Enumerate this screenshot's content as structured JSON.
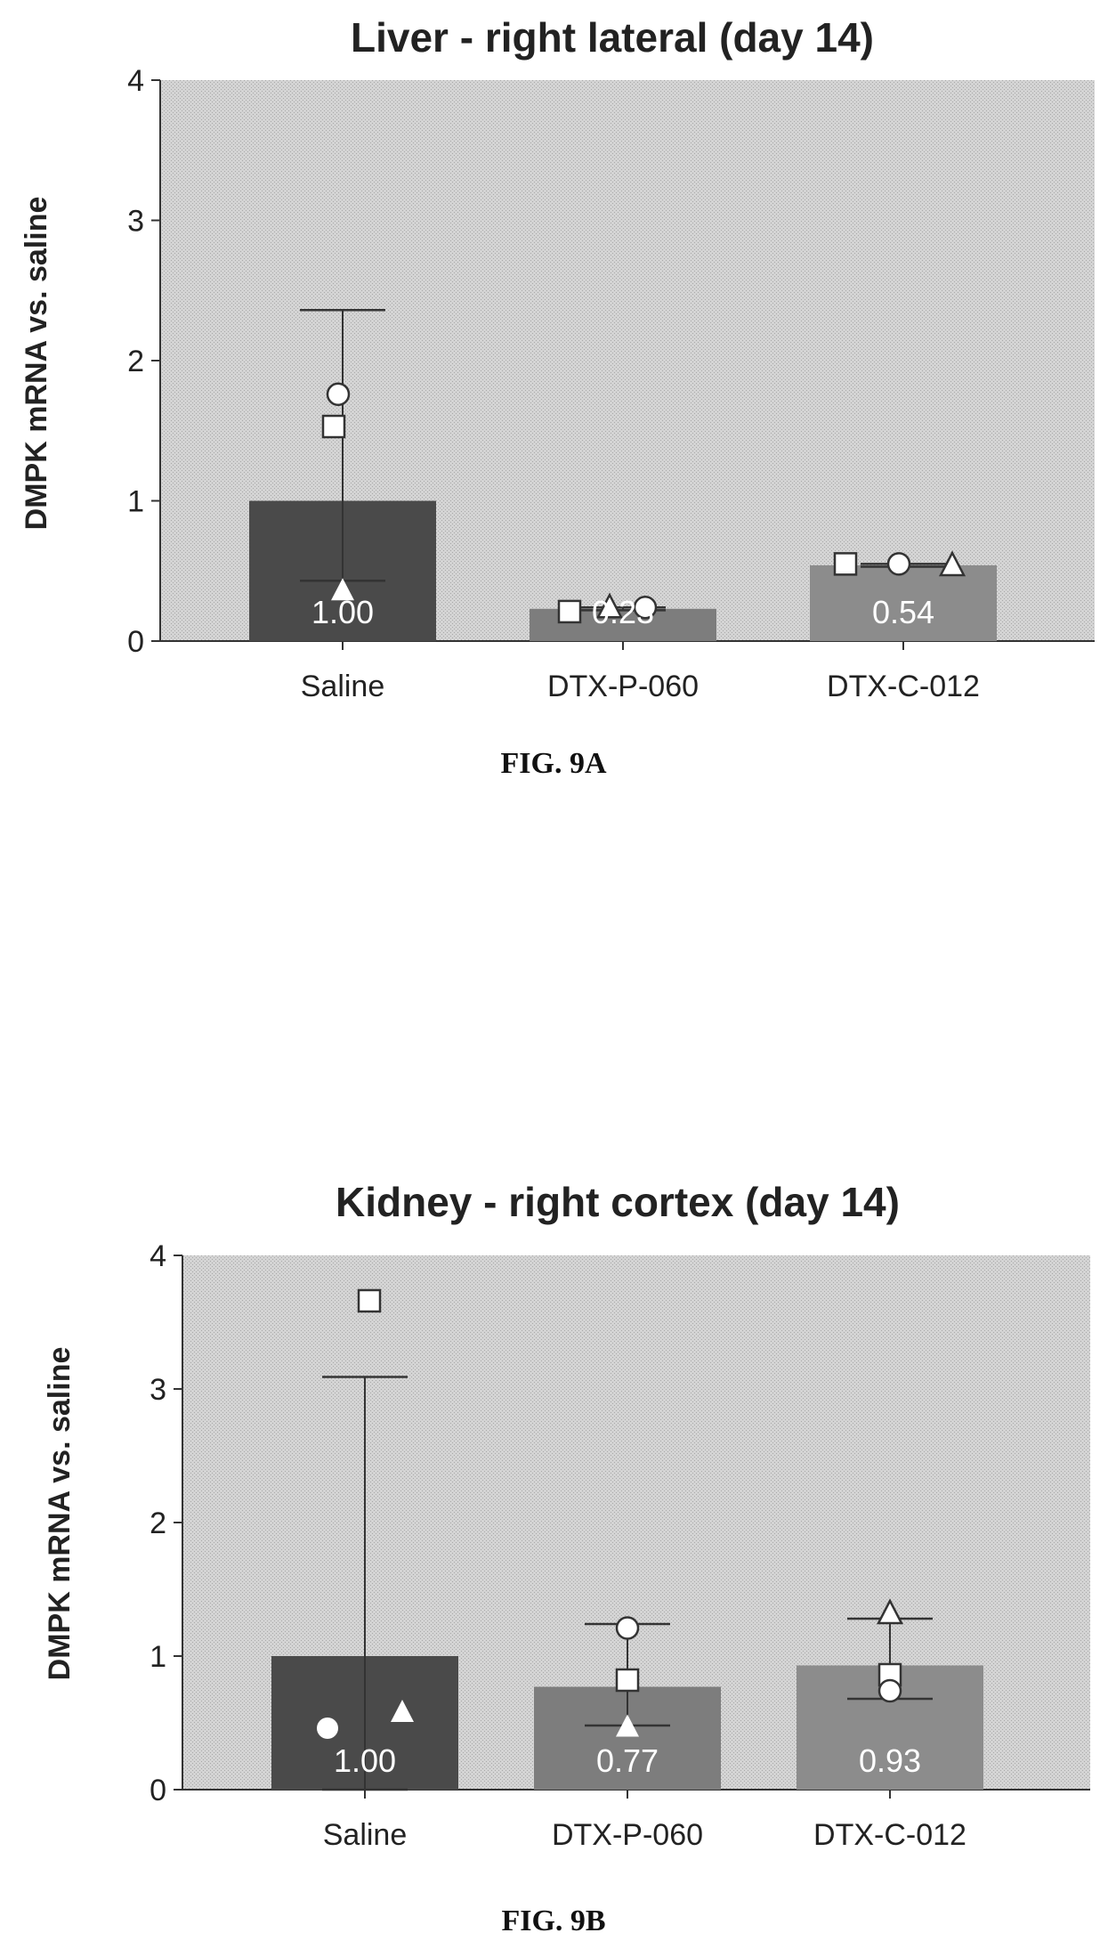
{
  "chart_data": [
    {
      "type": "bar",
      "title": "Liver - right lateral (day 14)",
      "ylabel": "DMPK mRNA vs. saline",
      "xlabel": "",
      "ylim": [
        0,
        4
      ],
      "yticks": [
        0,
        1,
        2,
        3,
        4
      ],
      "categories": [
        "Saline",
        "DTX-P-060",
        "DTX-C-012"
      ],
      "values": [
        1.0,
        0.23,
        0.54
      ],
      "value_labels": [
        "1.00",
        "0.23",
        "0.54"
      ],
      "bar_colors": [
        "#4a4a4a",
        "#7d7d7d",
        "#8c8c8c"
      ],
      "error_bars": [
        [
          0.43,
          2.36
        ],
        [
          0.22,
          0.24
        ],
        [
          0.53,
          0.55
        ]
      ],
      "points": [
        [
          {
            "marker": "circle-open",
            "y": 1.76
          },
          {
            "marker": "square-open",
            "y": 1.53
          },
          {
            "marker": "triangle-filled",
            "y": 0.36
          }
        ],
        [
          {
            "marker": "square-open",
            "y": 0.21
          },
          {
            "marker": "triangle-open",
            "y": 0.24
          },
          {
            "marker": "circle-open",
            "y": 0.24
          }
        ],
        [
          {
            "marker": "square-open",
            "y": 0.55
          },
          {
            "marker": "circle-open",
            "y": 0.55
          },
          {
            "marker": "triangle-open",
            "y": 0.54
          }
        ]
      ],
      "figure_label": "FIG. 9A",
      "grid": false,
      "background": "#d9d9d9"
    },
    {
      "type": "bar",
      "title": "Kidney - right cortex (day 14)",
      "ylabel": "DMPK mRNA vs. saline",
      "xlabel": "",
      "ylim": [
        0,
        4
      ],
      "yticks": [
        0,
        1,
        2,
        3,
        4
      ],
      "categories": [
        "Saline",
        "DTX-P-060",
        "DTX-C-012"
      ],
      "values": [
        1.0,
        0.77,
        0.93
      ],
      "value_labels": [
        "1.00",
        "0.77",
        "0.93"
      ],
      "bar_colors": [
        "#4a4a4a",
        "#7d7d7d",
        "#8c8c8c"
      ],
      "error_bars": [
        [
          0.0,
          3.09
        ],
        [
          0.48,
          1.24
        ],
        [
          0.68,
          1.28
        ]
      ],
      "points": [
        [
          {
            "marker": "square-open",
            "y": 3.66
          },
          {
            "marker": "circle-filled",
            "y": 0.46
          },
          {
            "marker": "triangle-filled",
            "y": 0.58
          }
        ],
        [
          {
            "marker": "circle-open",
            "y": 1.21
          },
          {
            "marker": "square-open",
            "y": 0.82
          },
          {
            "marker": "triangle-filled",
            "y": 0.47
          }
        ],
        [
          {
            "marker": "triangle-open",
            "y": 1.32
          },
          {
            "marker": "square-open",
            "y": 0.86
          },
          {
            "marker": "circle-open",
            "y": 0.74
          }
        ]
      ],
      "figure_label": "FIG. 9B",
      "grid": false,
      "background": "#d9d9d9"
    }
  ]
}
